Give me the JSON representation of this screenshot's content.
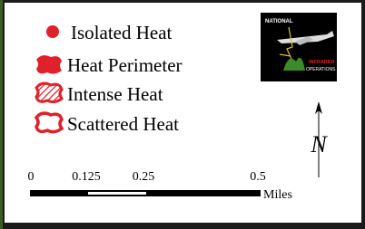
{
  "legend": {
    "items": [
      {
        "label": "Isolated Heat"
      },
      {
        "label": "Heat Perimeter"
      },
      {
        "label": "Intense Heat"
      },
      {
        "label": "Scattered Heat"
      }
    ]
  },
  "logo": {
    "top": "NATIONAL",
    "bottom_1": "INFRARED",
    "bottom_2": "OPERATIONS"
  },
  "scale_bar": {
    "labels": [
      "0",
      "0.125",
      "0.25",
      "0.5"
    ],
    "unit": "Miles"
  },
  "north_arrow": {
    "label": "N"
  }
}
